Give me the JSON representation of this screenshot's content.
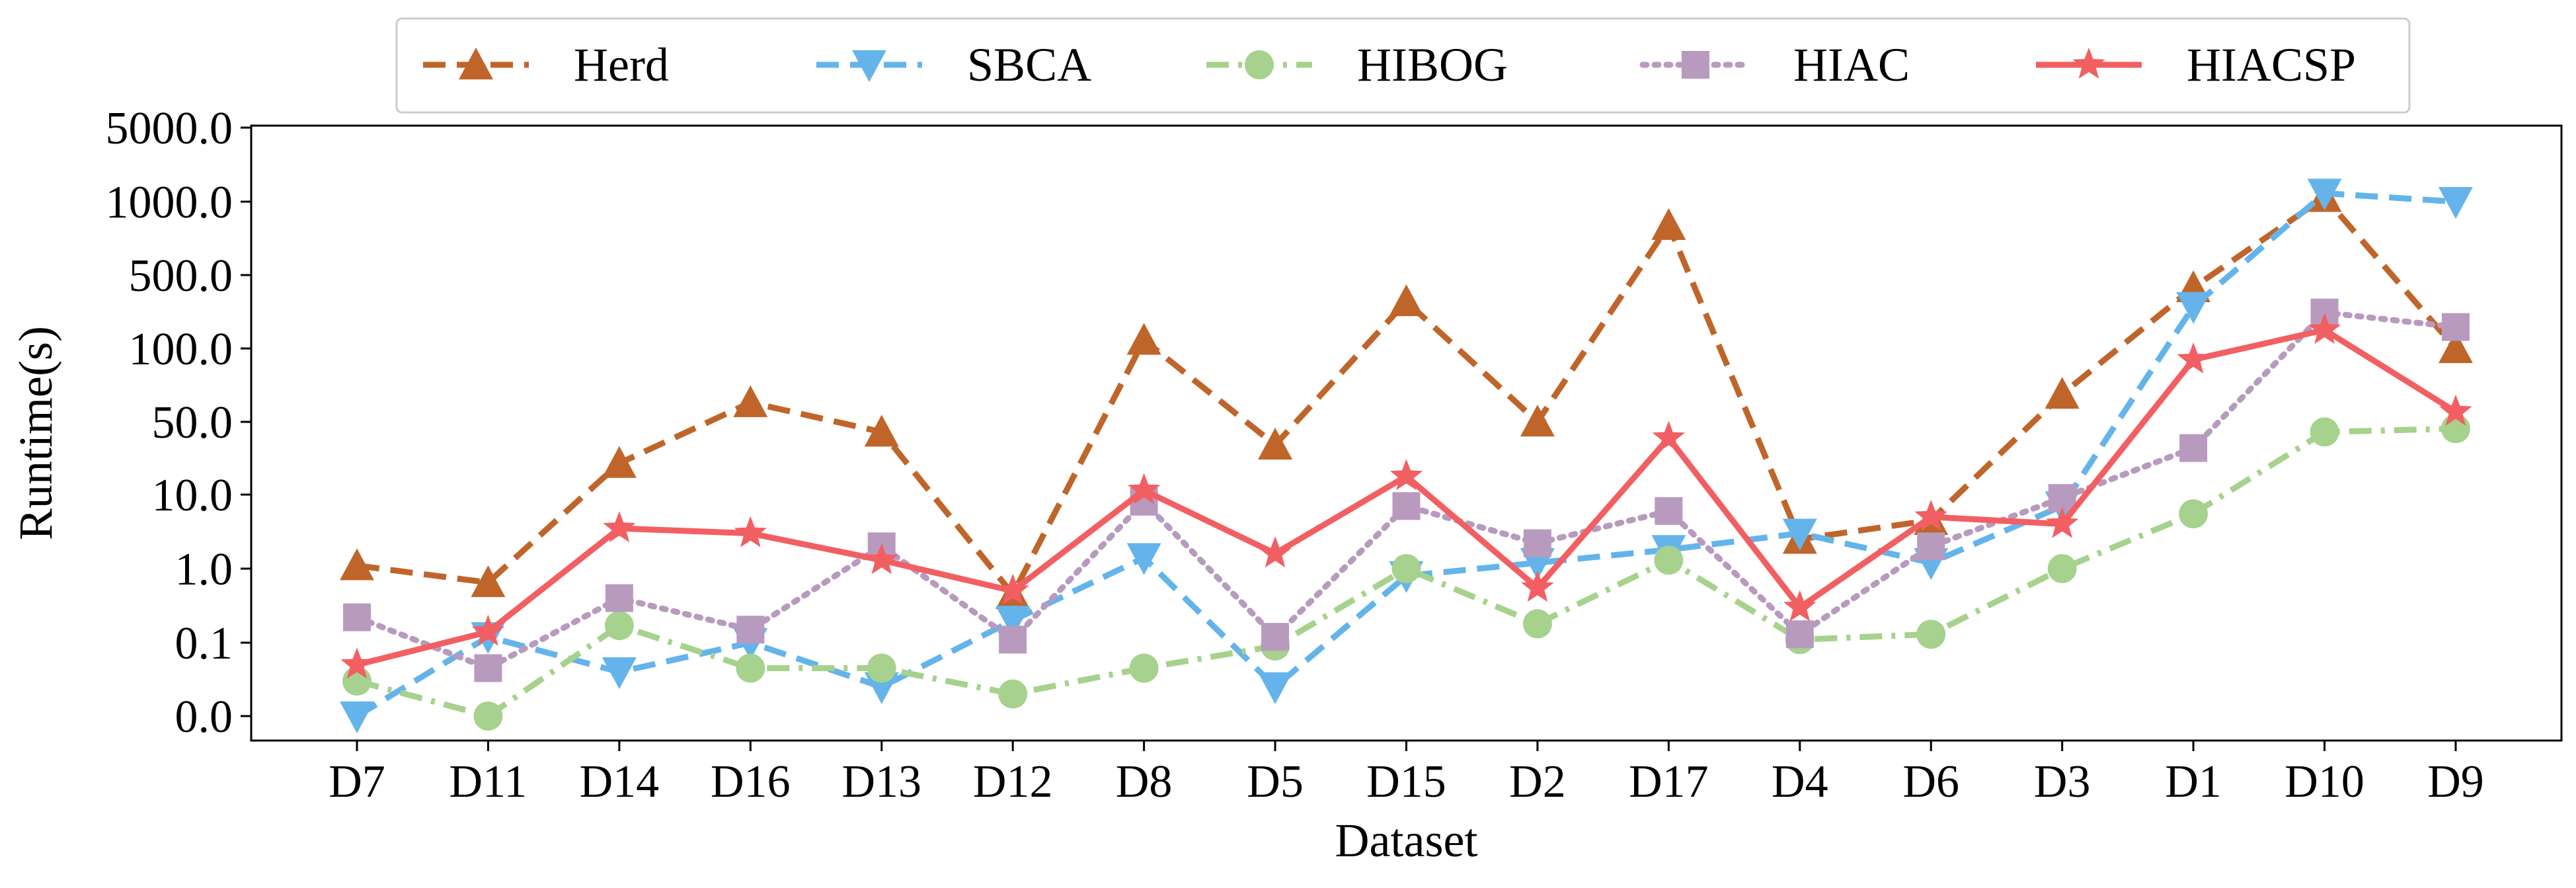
{
  "chart_data": {
    "type": "line",
    "title": "",
    "xlabel": "Dataset",
    "ylabel": "Runtime(s)",
    "yscale": "log-like (tick labels as printed)",
    "y_ticks": [
      "0.0",
      "0.1",
      "1.0",
      "10.0",
      "50.0",
      "100.0",
      "500.0",
      "1000.0",
      "5000.0"
    ],
    "categories": [
      "D7",
      "D11",
      "D14",
      "D16",
      "D13",
      "D12",
      "D8",
      "D5",
      "D15",
      "D2",
      "D17",
      "D4",
      "D6",
      "D3",
      "D1",
      "D10",
      "D9"
    ],
    "legend_position": "top-center",
    "grid": false,
    "series": [
      {
        "name": "Herd",
        "color": "#C0652A",
        "line_style": "dashed",
        "marker": "triangle-up",
        "values": [
          1.1,
          0.65,
          20,
          60,
          40,
          0.45,
          120,
          30,
          280,
          50,
          800,
          2.5,
          4.5,
          65,
          380,
          1100,
          100
        ]
      },
      {
        "name": "SBCA",
        "color": "#64B4EB",
        "line_style": "dashed",
        "marker": "triangle-down",
        "values": [
          0.01,
          0.12,
          0.04,
          0.1,
          0.025,
          0.2,
          1.4,
          0.025,
          0.8,
          1.2,
          1.8,
          3.0,
          1.2,
          7.0,
          250,
          1200,
          1000
        ]
      },
      {
        "name": "HIBOG",
        "color": "#A6D28D",
        "line_style": "dash-dot",
        "marker": "circle",
        "values": [
          0.03,
          0.01,
          0.17,
          0.045,
          0.045,
          0.02,
          0.045,
          0.09,
          1.0,
          0.18,
          1.3,
          0.11,
          0.13,
          1.0,
          5.5,
          40,
          43
        ]
      },
      {
        "name": "HIAC",
        "color": "#B89ABF",
        "line_style": "dotted",
        "marker": "square",
        "values": [
          0.22,
          0.045,
          0.4,
          0.15,
          2.0,
          0.11,
          8.0,
          0.12,
          7.0,
          2.2,
          6.0,
          0.13,
          2.0,
          9.0,
          28,
          220,
          160
        ]
      },
      {
        "name": "HIACSP",
        "color": "#F25F62",
        "line_style": "solid",
        "marker": "star",
        "values": [
          0.05,
          0.14,
          3.5,
          3.0,
          1.3,
          0.5,
          11,
          1.6,
          15,
          0.55,
          35,
          0.3,
          5.0,
          4.0,
          90,
          150,
          55
        ]
      }
    ]
  }
}
